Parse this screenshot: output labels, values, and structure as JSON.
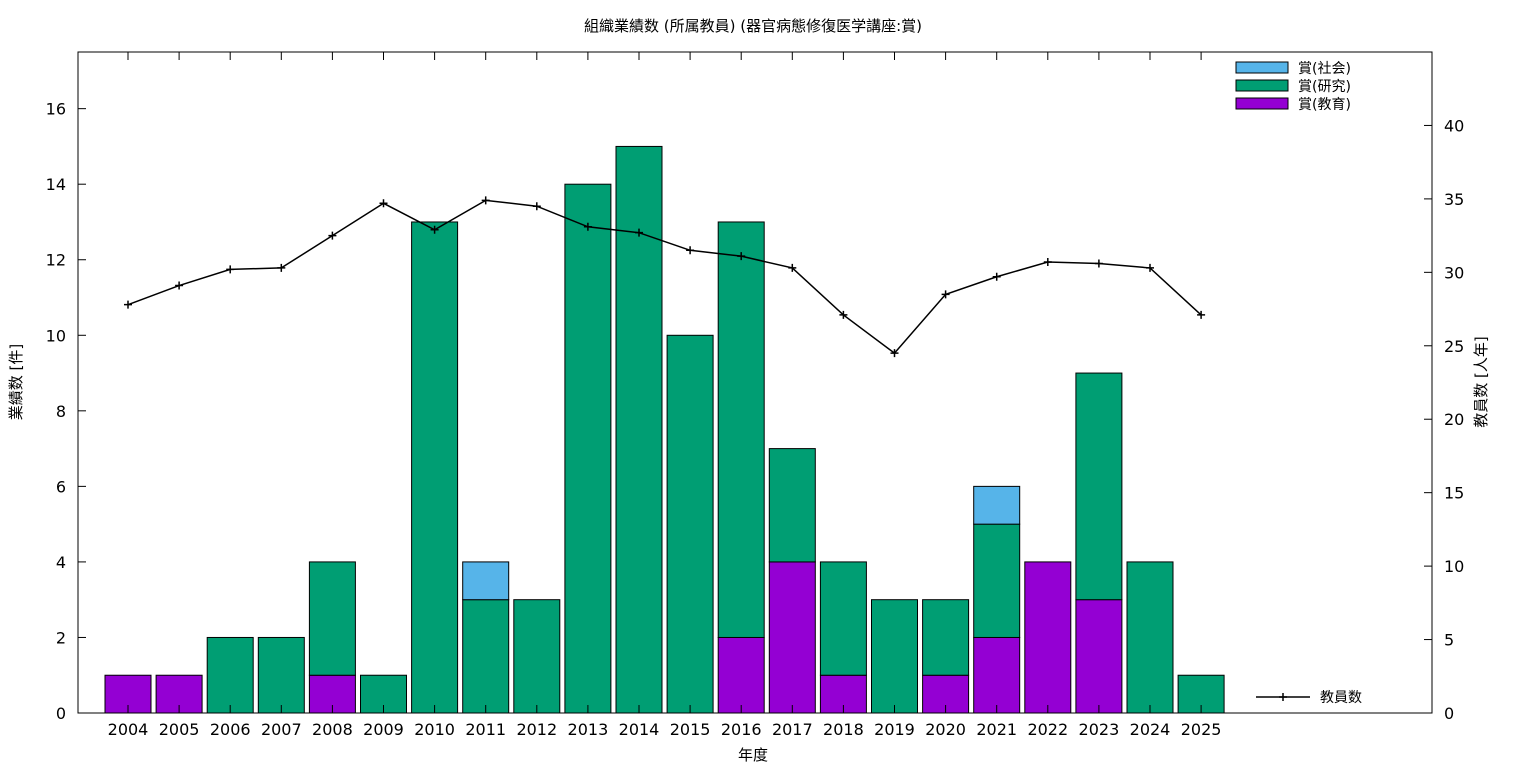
{
  "chart_data": {
    "type": "bar",
    "stacked": true,
    "title": "組織業績数 (所属教員) (器官病態修復医学講座:賞)",
    "xlabel": "年度",
    "ylabel": "業績数 [件]",
    "y2label": "教員数 [人年]",
    "ylim": [
      0,
      17.5
    ],
    "y2lim": [
      0,
      45
    ],
    "yticks": [
      0,
      2,
      4,
      6,
      8,
      10,
      12,
      14,
      16
    ],
    "y2ticks": [
      0,
      5,
      10,
      15,
      20,
      25,
      30,
      35,
      40
    ],
    "grid": false,
    "legend_position": "top-right",
    "categories": [
      "2004",
      "2005",
      "2006",
      "2007",
      "2008",
      "2009",
      "2010",
      "2011",
      "2012",
      "2013",
      "2014",
      "2015",
      "2016",
      "2017",
      "2018",
      "2019",
      "2020",
      "2021",
      "2022",
      "2023",
      "2024",
      "2025"
    ],
    "series": [
      {
        "name": "賞(教育)",
        "color": "#9400D3",
        "values": [
          1,
          1,
          0,
          0,
          1,
          0,
          0,
          0,
          0,
          0,
          0,
          0,
          2,
          4,
          1,
          0,
          1,
          2,
          4,
          3,
          0,
          0
        ]
      },
      {
        "name": "賞(研究)",
        "color": "#009E73",
        "values": [
          0,
          0,
          2,
          2,
          3,
          1,
          13,
          3,
          3,
          14,
          15,
          10,
          11,
          3,
          3,
          3,
          2,
          3,
          0,
          6,
          4,
          1
        ]
      },
      {
        "name": "賞(社会)",
        "color": "#56B4E9",
        "values": [
          0,
          0,
          0,
          0,
          0,
          0,
          0,
          1,
          0,
          0,
          0,
          0,
          0,
          0,
          0,
          0,
          0,
          1,
          0,
          0,
          0,
          0
        ]
      }
    ],
    "legend_order": [
      "賞(社会)",
      "賞(研究)",
      "賞(教育)"
    ],
    "line": {
      "name": "教員数",
      "color": "#000000",
      "axis": "y2",
      "values": [
        27.8,
        29.1,
        30.2,
        30.3,
        32.5,
        34.7,
        32.9,
        34.9,
        34.5,
        33.1,
        32.7,
        31.5,
        31.1,
        30.3,
        27.1,
        24.5,
        28.5,
        29.7,
        30.7,
        30.6,
        30.3,
        27.1
      ]
    }
  }
}
